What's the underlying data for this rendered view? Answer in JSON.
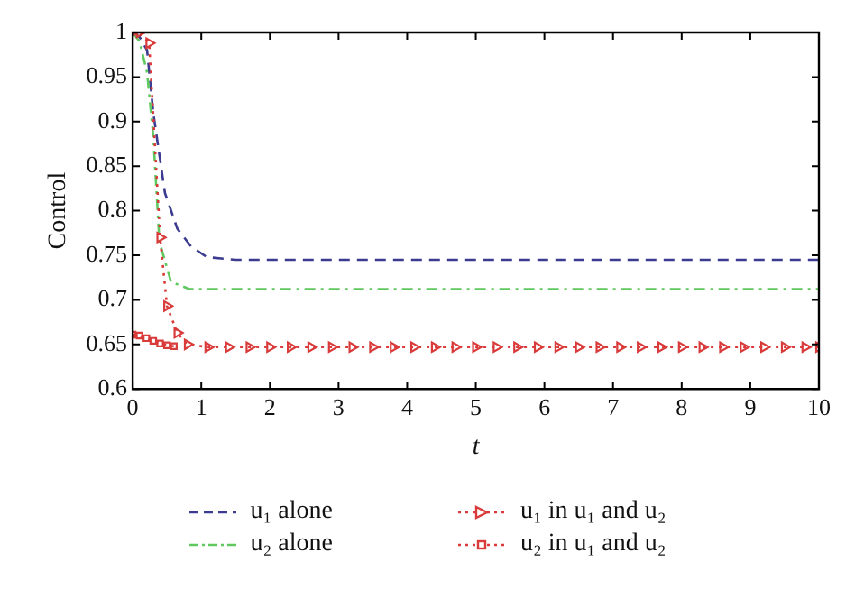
{
  "chart_data": {
    "type": "line",
    "xlabel": "t",
    "ylabel": "Control",
    "xlim": [
      0,
      10
    ],
    "ylim": [
      0.6,
      1
    ],
    "xticks": [
      0,
      1,
      2,
      3,
      4,
      5,
      6,
      7,
      8,
      9,
      10
    ],
    "yticks": [
      0.6,
      0.65,
      0.7,
      0.75,
      0.8,
      0.85,
      0.9,
      0.95,
      1
    ],
    "grid": false,
    "legend": "bottom",
    "series": [
      {
        "name": "u₁ alone",
        "color": "#3b3b8f",
        "line_style": "dashed",
        "marker": "none",
        "x": [
          0,
          0.1,
          0.21,
          0.3,
          0.47,
          0.65,
          0.85,
          1.08,
          1.5,
          2,
          3,
          4,
          5,
          6,
          7,
          8,
          9,
          10
        ],
        "values": [
          1,
          0.995,
          0.98,
          0.91,
          0.82,
          0.78,
          0.76,
          0.748,
          0.745,
          0.745,
          0.745,
          0.745,
          0.745,
          0.745,
          0.745,
          0.745,
          0.745,
          0.745
        ]
      },
      {
        "name": "u₂ alone",
        "color": "#5fc95f",
        "line_style": "dashdot",
        "marker": "none",
        "x": [
          0,
          0.1,
          0.21,
          0.3,
          0.39,
          0.56,
          0.83,
          1.2,
          2,
          3,
          4,
          5,
          6,
          7,
          8,
          9,
          10
        ],
        "values": [
          1,
          0.99,
          0.955,
          0.884,
          0.765,
          0.72,
          0.712,
          0.712,
          0.712,
          0.712,
          0.712,
          0.712,
          0.712,
          0.712,
          0.712,
          0.712,
          0.712
        ]
      },
      {
        "name": "u₁ in u₁ and u₂",
        "color": "#d93a3a",
        "line_style": "dotted",
        "marker": "triangle",
        "x": [
          0,
          0.1,
          0.24,
          0.4,
          0.5,
          0.65,
          0.8,
          1.1,
          1.4,
          1.7,
          2,
          2.3,
          2.6,
          2.9,
          3.2,
          3.5,
          3.8,
          4.1,
          4.4,
          4.7,
          5,
          5.3,
          5.6,
          5.9,
          6.2,
          6.5,
          6.8,
          7.1,
          7.4,
          7.7,
          8,
          8.3,
          8.6,
          8.9,
          9.2,
          9.5,
          9.8,
          10
        ],
        "values": [
          1,
          1,
          0.988,
          0.77,
          0.693,
          0.663,
          0.65,
          0.647,
          0.647,
          0.647,
          0.647,
          0.647,
          0.647,
          0.647,
          0.647,
          0.647,
          0.647,
          0.647,
          0.647,
          0.647,
          0.647,
          0.647,
          0.647,
          0.647,
          0.647,
          0.647,
          0.647,
          0.647,
          0.647,
          0.647,
          0.647,
          0.647,
          0.647,
          0.647,
          0.647,
          0.647,
          0.647,
          0.647
        ]
      },
      {
        "name": "u₂ in u₁ and u₂",
        "color": "#d93a3a",
        "line_style": "dotted",
        "marker": "square",
        "x": [
          0,
          0.1,
          0.2,
          0.3,
          0.4,
          0.5,
          0.6
        ],
        "values": [
          0.661,
          0.66,
          0.657,
          0.654,
          0.651,
          0.649,
          0.648
        ]
      }
    ]
  }
}
